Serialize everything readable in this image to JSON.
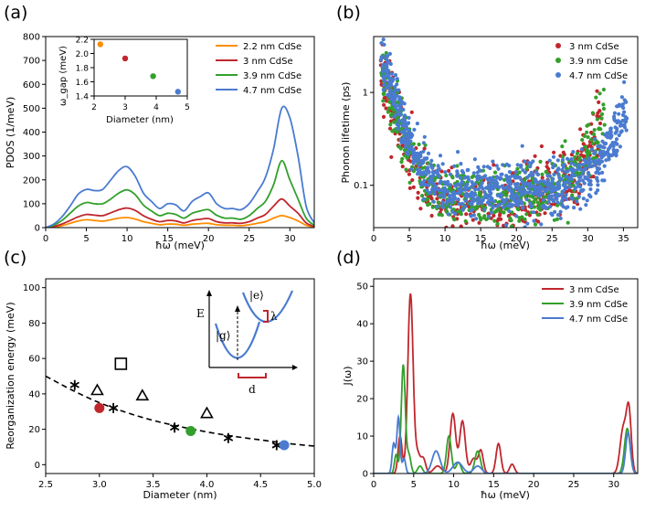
{
  "panels": [
    {
      "id": "a",
      "label": "(a)"
    },
    {
      "id": "b",
      "label": "(b)"
    },
    {
      "id": "c",
      "label": "(c)"
    },
    {
      "id": "d",
      "label": "(d)"
    }
  ],
  "colors": {
    "c22": "#ff8c00",
    "c3": "#c0272d",
    "c39": "#33a02c",
    "c47": "#4a7bd0"
  },
  "chart_data": [
    {
      "panel": "a",
      "type": "line",
      "title": "",
      "xlabel": "ħω (meV)",
      "ylabel": "PDOS (1/meV)",
      "xlim": [
        0,
        33
      ],
      "ylim": [
        0,
        800
      ],
      "xticks": [
        0,
        5,
        10,
        15,
        20,
        25,
        30
      ],
      "yticks": [
        0,
        100,
        200,
        300,
        400,
        500,
        600,
        700,
        800
      ],
      "legend": "top-right",
      "series": [
        {
          "name": "2.2 nm CdSe",
          "color": "#ff8c00",
          "x": [
            0,
            1,
            2,
            3,
            4,
            5,
            6,
            7,
            8,
            9,
            10,
            11,
            12,
            13,
            14,
            15,
            16,
            17,
            18,
            19,
            20,
            21,
            22,
            23,
            24,
            25,
            26,
            27,
            28,
            29,
            30,
            31,
            32,
            33
          ],
          "y": [
            0,
            2,
            8,
            18,
            28,
            33,
            30,
            27,
            33,
            40,
            42,
            36,
            25,
            18,
            12,
            15,
            14,
            10,
            14,
            17,
            18,
            12,
            10,
            10,
            8,
            12,
            18,
            25,
            40,
            50,
            42,
            28,
            10,
            2
          ]
        },
        {
          "name": "3 nm CdSe",
          "color": "#c0272d",
          "x": [
            0,
            1,
            2,
            3,
            4,
            5,
            6,
            7,
            8,
            9,
            10,
            11,
            12,
            13,
            14,
            15,
            16,
            17,
            18,
            19,
            20,
            21,
            22,
            23,
            24,
            25,
            26,
            27,
            28,
            29,
            30,
            31,
            32,
            33
          ],
          "y": [
            0,
            5,
            15,
            30,
            45,
            55,
            52,
            50,
            62,
            75,
            82,
            72,
            50,
            35,
            25,
            30,
            28,
            20,
            30,
            35,
            38,
            25,
            20,
            20,
            18,
            25,
            40,
            55,
            90,
            120,
            90,
            60,
            20,
            5
          ]
        },
        {
          "name": "3.9 nm CdSe",
          "color": "#33a02c",
          "x": [
            0,
            1,
            2,
            3,
            4,
            5,
            6,
            7,
            8,
            9,
            10,
            11,
            12,
            13,
            14,
            15,
            16,
            17,
            18,
            19,
            20,
            21,
            22,
            23,
            24,
            25,
            26,
            27,
            28,
            29,
            30,
            31,
            32,
            33
          ],
          "y": [
            0,
            10,
            30,
            60,
            90,
            105,
            100,
            100,
            120,
            145,
            158,
            138,
            95,
            70,
            50,
            60,
            55,
            40,
            60,
            70,
            75,
            52,
            40,
            40,
            35,
            50,
            80,
            110,
            180,
            280,
            200,
            120,
            40,
            10
          ]
        },
        {
          "name": "4.7 nm CdSe",
          "color": "#4a7bd0",
          "x": [
            0,
            1,
            2,
            3,
            4,
            5,
            6,
            7,
            8,
            9,
            10,
            11,
            12,
            13,
            14,
            15,
            16,
            17,
            18,
            19,
            20,
            21,
            22,
            23,
            24,
            25,
            26,
            27,
            28,
            29,
            30,
            31,
            32,
            33
          ],
          "y": [
            0,
            15,
            45,
            90,
            140,
            160,
            155,
            160,
            200,
            240,
            255,
            215,
            145,
            110,
            80,
            100,
            95,
            70,
            110,
            130,
            145,
            100,
            80,
            80,
            75,
            100,
            150,
            210,
            330,
            500,
            460,
            300,
            90,
            20
          ]
        }
      ],
      "inset": {
        "type": "scatter",
        "xlabel": "Diameter (nm)",
        "ylabel": "ω_gap (meV)",
        "xlim": [
          2,
          5
        ],
        "ylim": [
          1.4,
          2.2
        ],
        "xticks": [
          2,
          3,
          4,
          5
        ],
        "yticks": [
          1.4,
          1.6,
          1.8,
          2.0,
          2.2
        ],
        "points": [
          {
            "x": 2.2,
            "y": 2.13,
            "color": "#ff8c00"
          },
          {
            "x": 3.0,
            "y": 1.93,
            "color": "#c0272d"
          },
          {
            "x": 3.9,
            "y": 1.68,
            "color": "#33a02c"
          },
          {
            "x": 4.7,
            "y": 1.46,
            "color": "#4a7bd0"
          }
        ]
      }
    },
    {
      "panel": "b",
      "type": "scatter",
      "xlabel": "ħω (meV)",
      "ylabel": "Phonon lifetime (ps)",
      "xlim": [
        0,
        37
      ],
      "ylim": [
        0.035,
        4
      ],
      "yscale": "log",
      "xticks": [
        0,
        5,
        10,
        15,
        20,
        25,
        30,
        35
      ],
      "yticks": [
        0.1,
        1
      ],
      "ytick_labels": [
        "0.1",
        "1"
      ],
      "legend": "top-right",
      "series": [
        {
          "name": "3 nm CdSe",
          "color": "#c0272d"
        },
        {
          "name": "3.9 nm CdSe",
          "color": "#33a02c"
        },
        {
          "name": "4.7 nm CdSe",
          "color": "#4a7bd0"
        }
      ]
    },
    {
      "panel": "c",
      "type": "scatter",
      "xlabel": "Diameter (nm)",
      "ylabel": "Reorganization energy (meV)",
      "xlim": [
        2.5,
        5.0
      ],
      "ylim": [
        -5,
        105
      ],
      "xticks": [
        2.5,
        3.0,
        3.5,
        4.0,
        4.5,
        5.0
      ],
      "xtick_labels": [
        "2.5",
        "3.0",
        "3.5",
        "4.0",
        "4.5",
        "5.0"
      ],
      "yticks": [
        0,
        20,
        40,
        60,
        80,
        100
      ],
      "fit_curve": {
        "x": [
          2.5,
          2.75,
          3.0,
          3.25,
          3.5,
          3.75,
          4.0,
          4.25,
          4.5,
          4.75,
          5.0
        ],
        "y": [
          50,
          42,
          35,
          29.5,
          25,
          21.5,
          18.5,
          16,
          14,
          12,
          10.5
        ]
      },
      "stars": [
        {
          "x": 2.77,
          "y": 45
        },
        {
          "x": 3.13,
          "y": 32
        },
        {
          "x": 3.7,
          "y": 21
        },
        {
          "x": 4.2,
          "y": 15
        },
        {
          "x": 4.65,
          "y": 11
        }
      ],
      "triangles": [
        {
          "x": 2.98,
          "y": 42
        },
        {
          "x": 3.4,
          "y": 39
        },
        {
          "x": 4.0,
          "y": 29
        }
      ],
      "squares": [
        {
          "x": 3.2,
          "y": 57
        }
      ],
      "circles": [
        {
          "x": 3.0,
          "y": 32,
          "color": "#c0272d"
        },
        {
          "x": 3.85,
          "y": 19,
          "color": "#33a02c"
        },
        {
          "x": 4.72,
          "y": 11,
          "color": "#4a7bd0"
        }
      ],
      "inset_labels": {
        "energy": "E",
        "excited": "|e⟩",
        "ground": "|g⟩",
        "lambda": "λ",
        "displacement": "d"
      }
    },
    {
      "panel": "d",
      "type": "line",
      "xlabel": "ħω (meV)",
      "ylabel": "J(ω)",
      "xlim": [
        0,
        33
      ],
      "ylim": [
        0,
        52
      ],
      "xticks": [
        0,
        5,
        10,
        15,
        20,
        25,
        30
      ],
      "yticks": [
        0,
        10,
        20,
        30,
        40,
        50
      ],
      "legend": "top-right",
      "series": [
        {
          "name": "3 nm CdSe",
          "color": "#c0272d",
          "peaks": [
            [
              3.3,
              10,
              0.25
            ],
            [
              4.6,
              48,
              0.33
            ],
            [
              5.5,
              5,
              0.3
            ],
            [
              6.2,
              4,
              0.3
            ],
            [
              8.0,
              2,
              0.5
            ],
            [
              9.9,
              16,
              0.35
            ],
            [
              11.1,
              14,
              0.35
            ],
            [
              12.5,
              4,
              0.4
            ],
            [
              13.4,
              6,
              0.3
            ],
            [
              15.6,
              8,
              0.3
            ],
            [
              17.3,
              2.5,
              0.3
            ],
            [
              31.2,
              12,
              0.4
            ],
            [
              31.9,
              16,
              0.3
            ]
          ]
        },
        {
          "name": "3.9 nm CdSe",
          "color": "#33a02c",
          "peaks": [
            [
              2.8,
              5,
              0.2
            ],
            [
              3.7,
              29,
              0.25
            ],
            [
              4.4,
              5,
              0.25
            ],
            [
              5.8,
              2,
              0.3
            ],
            [
              9.4,
              10,
              0.3
            ],
            [
              10.6,
              3,
              0.3
            ],
            [
              13.0,
              6,
              0.35
            ],
            [
              31.7,
              12,
              0.35
            ]
          ]
        },
        {
          "name": "4.7 nm CdSe",
          "color": "#4a7bd0",
          "peaks": [
            [
              2.5,
              8,
              0.2
            ],
            [
              3.1,
              15,
              0.2
            ],
            [
              3.8,
              4,
              0.2
            ],
            [
              7.8,
              6,
              0.5
            ],
            [
              10.5,
              3,
              0.6
            ],
            [
              13.0,
              2,
              0.5
            ],
            [
              31.8,
              11,
              0.3
            ]
          ]
        }
      ]
    }
  ]
}
